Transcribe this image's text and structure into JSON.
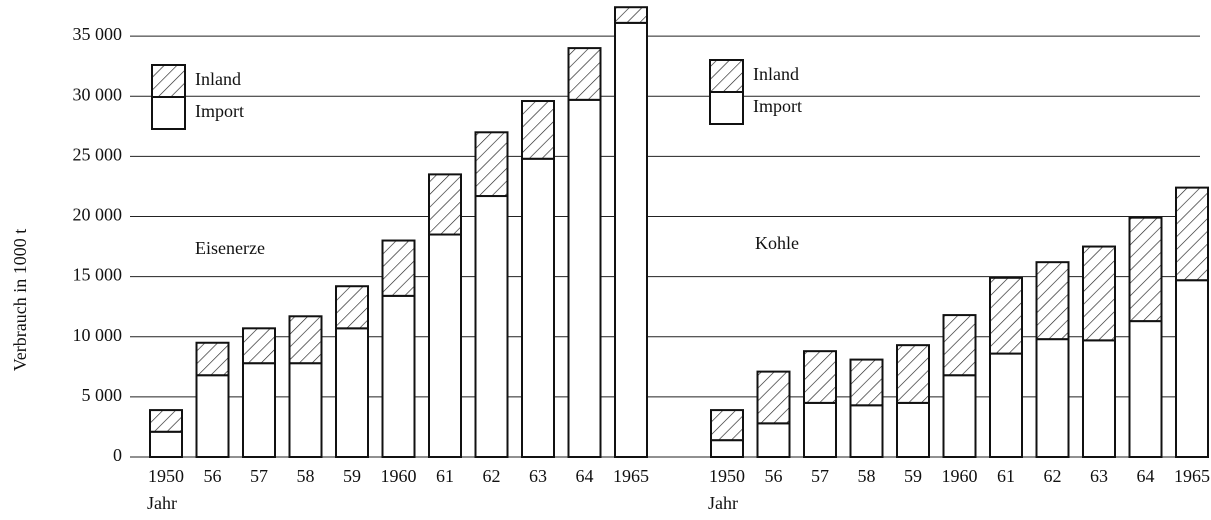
{
  "chart_data": {
    "type": "bar",
    "stacked": true,
    "ylabel": "Verbrauch in 1000 t",
    "ylim": [
      0,
      38000
    ],
    "yticks": [
      0,
      {
        "value": 5000,
        "label": "5 000"
      },
      {
        "value": 10000,
        "label": "10 000"
      },
      {
        "value": 15000,
        "label": "15 000"
      },
      {
        "value": 20000,
        "label": "20 000"
      },
      {
        "value": 25000,
        "label": "25 000"
      },
      {
        "value": 30000,
        "label": "30 000"
      },
      {
        "value": 35000,
        "label": "35 000"
      }
    ],
    "grid": true,
    "groups": [
      {
        "label": "Eisenerze",
        "xlabel": "Jahr",
        "categories": [
          "1950",
          "56",
          "57",
          "58",
          "59",
          "1960",
          "61",
          "62",
          "63",
          "64",
          "1965"
        ],
        "series": [
          {
            "name": "Import",
            "color": "#ffffff",
            "values": [
              2100,
              6800,
              7800,
              7800,
              10700,
              13400,
              18500,
              21700,
              24800,
              29700,
              36100
            ]
          },
          {
            "name": "Inland",
            "color": "#ffffff",
            "hatch": true,
            "values": [
              1800,
              2700,
              2900,
              3900,
              3500,
              4600,
              5000,
              5300,
              4800,
              4300,
              1300
            ]
          }
        ]
      },
      {
        "label": "Kohle",
        "xlabel": "Jahr",
        "categories": [
          "1950",
          "56",
          "57",
          "58",
          "59",
          "1960",
          "61",
          "62",
          "63",
          "64",
          "1965"
        ],
        "series": [
          {
            "name": "Import",
            "color": "#ffffff",
            "values": [
              1400,
              2800,
              4500,
              4300,
              4500,
              6800,
              8600,
              9800,
              9700,
              11300,
              14700
            ]
          },
          {
            "name": "Inland",
            "color": "#ffffff",
            "hatch": true,
            "values": [
              2500,
              4300,
              4300,
              3800,
              4800,
              5000,
              6300,
              6400,
              7800,
              8600,
              7700
            ]
          }
        ]
      }
    ]
  }
}
